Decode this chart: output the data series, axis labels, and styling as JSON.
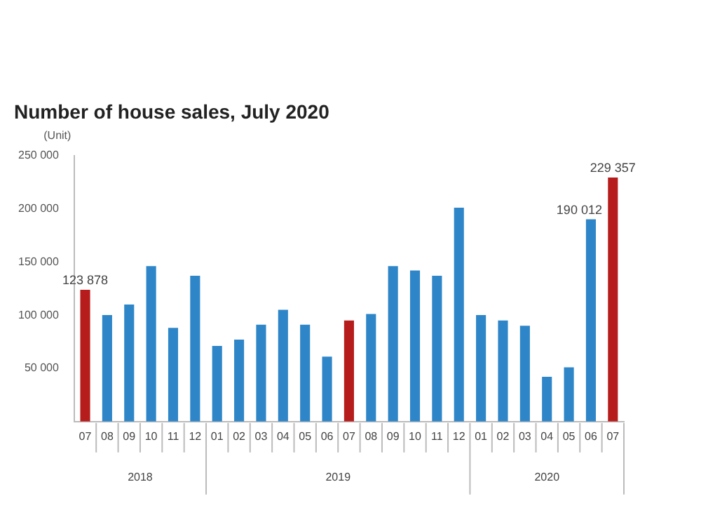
{
  "chart_data": {
    "type": "bar",
    "title": "Number of house sales, July 2020",
    "ylabel": "(Unit)",
    "categories": [
      "07",
      "08",
      "09",
      "10",
      "11",
      "12",
      "01",
      "02",
      "03",
      "04",
      "05",
      "06",
      "07",
      "08",
      "09",
      "10",
      "11",
      "12",
      "01",
      "02",
      "03",
      "04",
      "05",
      "06",
      "07"
    ],
    "annotations": [
      "2018",
      "2019",
      "2020"
    ],
    "values": [
      123878,
      100000,
      110000,
      146000,
      88000,
      137000,
      71000,
      77000,
      91000,
      105000,
      91000,
      61000,
      95000,
      101000,
      146000,
      142000,
      137000,
      201000,
      100000,
      95000,
      90000,
      42000,
      51000,
      190012,
      229357
    ],
    "colors": [
      "#b71c1c",
      "#2e86c8",
      "#2e86c8",
      "#2e86c8",
      "#2e86c8",
      "#2e86c8",
      "#2e86c8",
      "#2e86c8",
      "#2e86c8",
      "#2e86c8",
      "#2e86c8",
      "#2e86c8",
      "#b71c1c",
      "#2e86c8",
      "#2e86c8",
      "#2e86c8",
      "#2e86c8",
      "#2e86c8",
      "#2e86c8",
      "#2e86c8",
      "#2e86c8",
      "#2e86c8",
      "#2e86c8",
      "#2e86c8",
      "#b71c1c"
    ],
    "value_labels": [
      "123 878",
      null,
      null,
      null,
      null,
      null,
      null,
      null,
      null,
      null,
      null,
      null,
      null,
      null,
      null,
      null,
      null,
      null,
      null,
      null,
      null,
      null,
      null,
      "190 012",
      "229 357"
    ],
    "ylim": [
      0,
      250000
    ],
    "yticks": [
      {
        "value": 0,
        "label": null
      },
      {
        "value": 50000,
        "label": "50 000"
      },
      {
        "value": 100000,
        "label": "100 000"
      },
      {
        "value": 150000,
        "label": "150 000"
      },
      {
        "value": 200000,
        "label": "200 000"
      },
      {
        "value": 250000,
        "label": "250 000"
      }
    ],
    "grid": false,
    "legend": false
  }
}
